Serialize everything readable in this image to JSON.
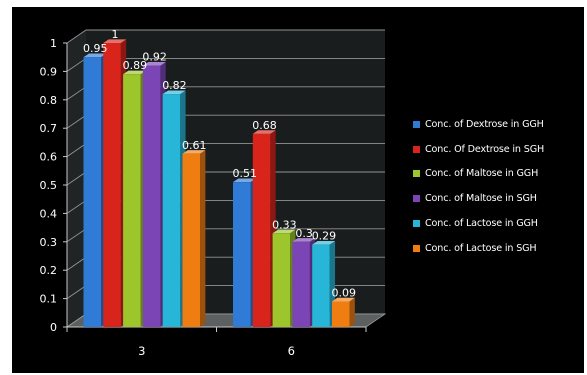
{
  "chart_data": {
    "type": "bar",
    "categories": [
      "3",
      "6"
    ],
    "ylim": [
      0,
      1
    ],
    "yticks": [
      "0",
      "0.1",
      "0.2",
      "0.3",
      "0.4",
      "0.5",
      "0.6",
      "0.7",
      "0.8",
      "0.9",
      "1"
    ],
    "title": "",
    "xlabel": "",
    "ylabel": "",
    "legend_position": "right",
    "grid": true,
    "series": [
      {
        "name": "Conc. of Dextrose in GGH",
        "color": "#2f7bd6",
        "values": [
          0.95,
          0.51
        ],
        "labels": [
          "0.95",
          "0.51"
        ]
      },
      {
        "name": "Conc. Of Dextrose in SGH",
        "color": "#d9241c",
        "values": [
          1,
          0.68
        ],
        "labels": [
          "1",
          "0.68"
        ]
      },
      {
        "name": "Conc. of Maltose in GGH",
        "color": "#9cc62b",
        "values": [
          0.89,
          0.33
        ],
        "labels": [
          "0.89",
          "0.33"
        ]
      },
      {
        "name": "Conc. of Maltose in SGH",
        "color": "#7b45b5",
        "values": [
          0.92,
          0.3
        ],
        "labels": [
          "0.92",
          "0.3"
        ]
      },
      {
        "name": "Conc. of Lactose in GGH",
        "color": "#27b6d8",
        "values": [
          0.82,
          0.29
        ],
        "labels": [
          "0.82",
          "0.29"
        ]
      },
      {
        "name": "Conc. of Lactose in SGH",
        "color": "#f07d12",
        "values": [
          0.61,
          0.09
        ],
        "labels": [
          "0.61",
          "0.09"
        ]
      }
    ]
  }
}
